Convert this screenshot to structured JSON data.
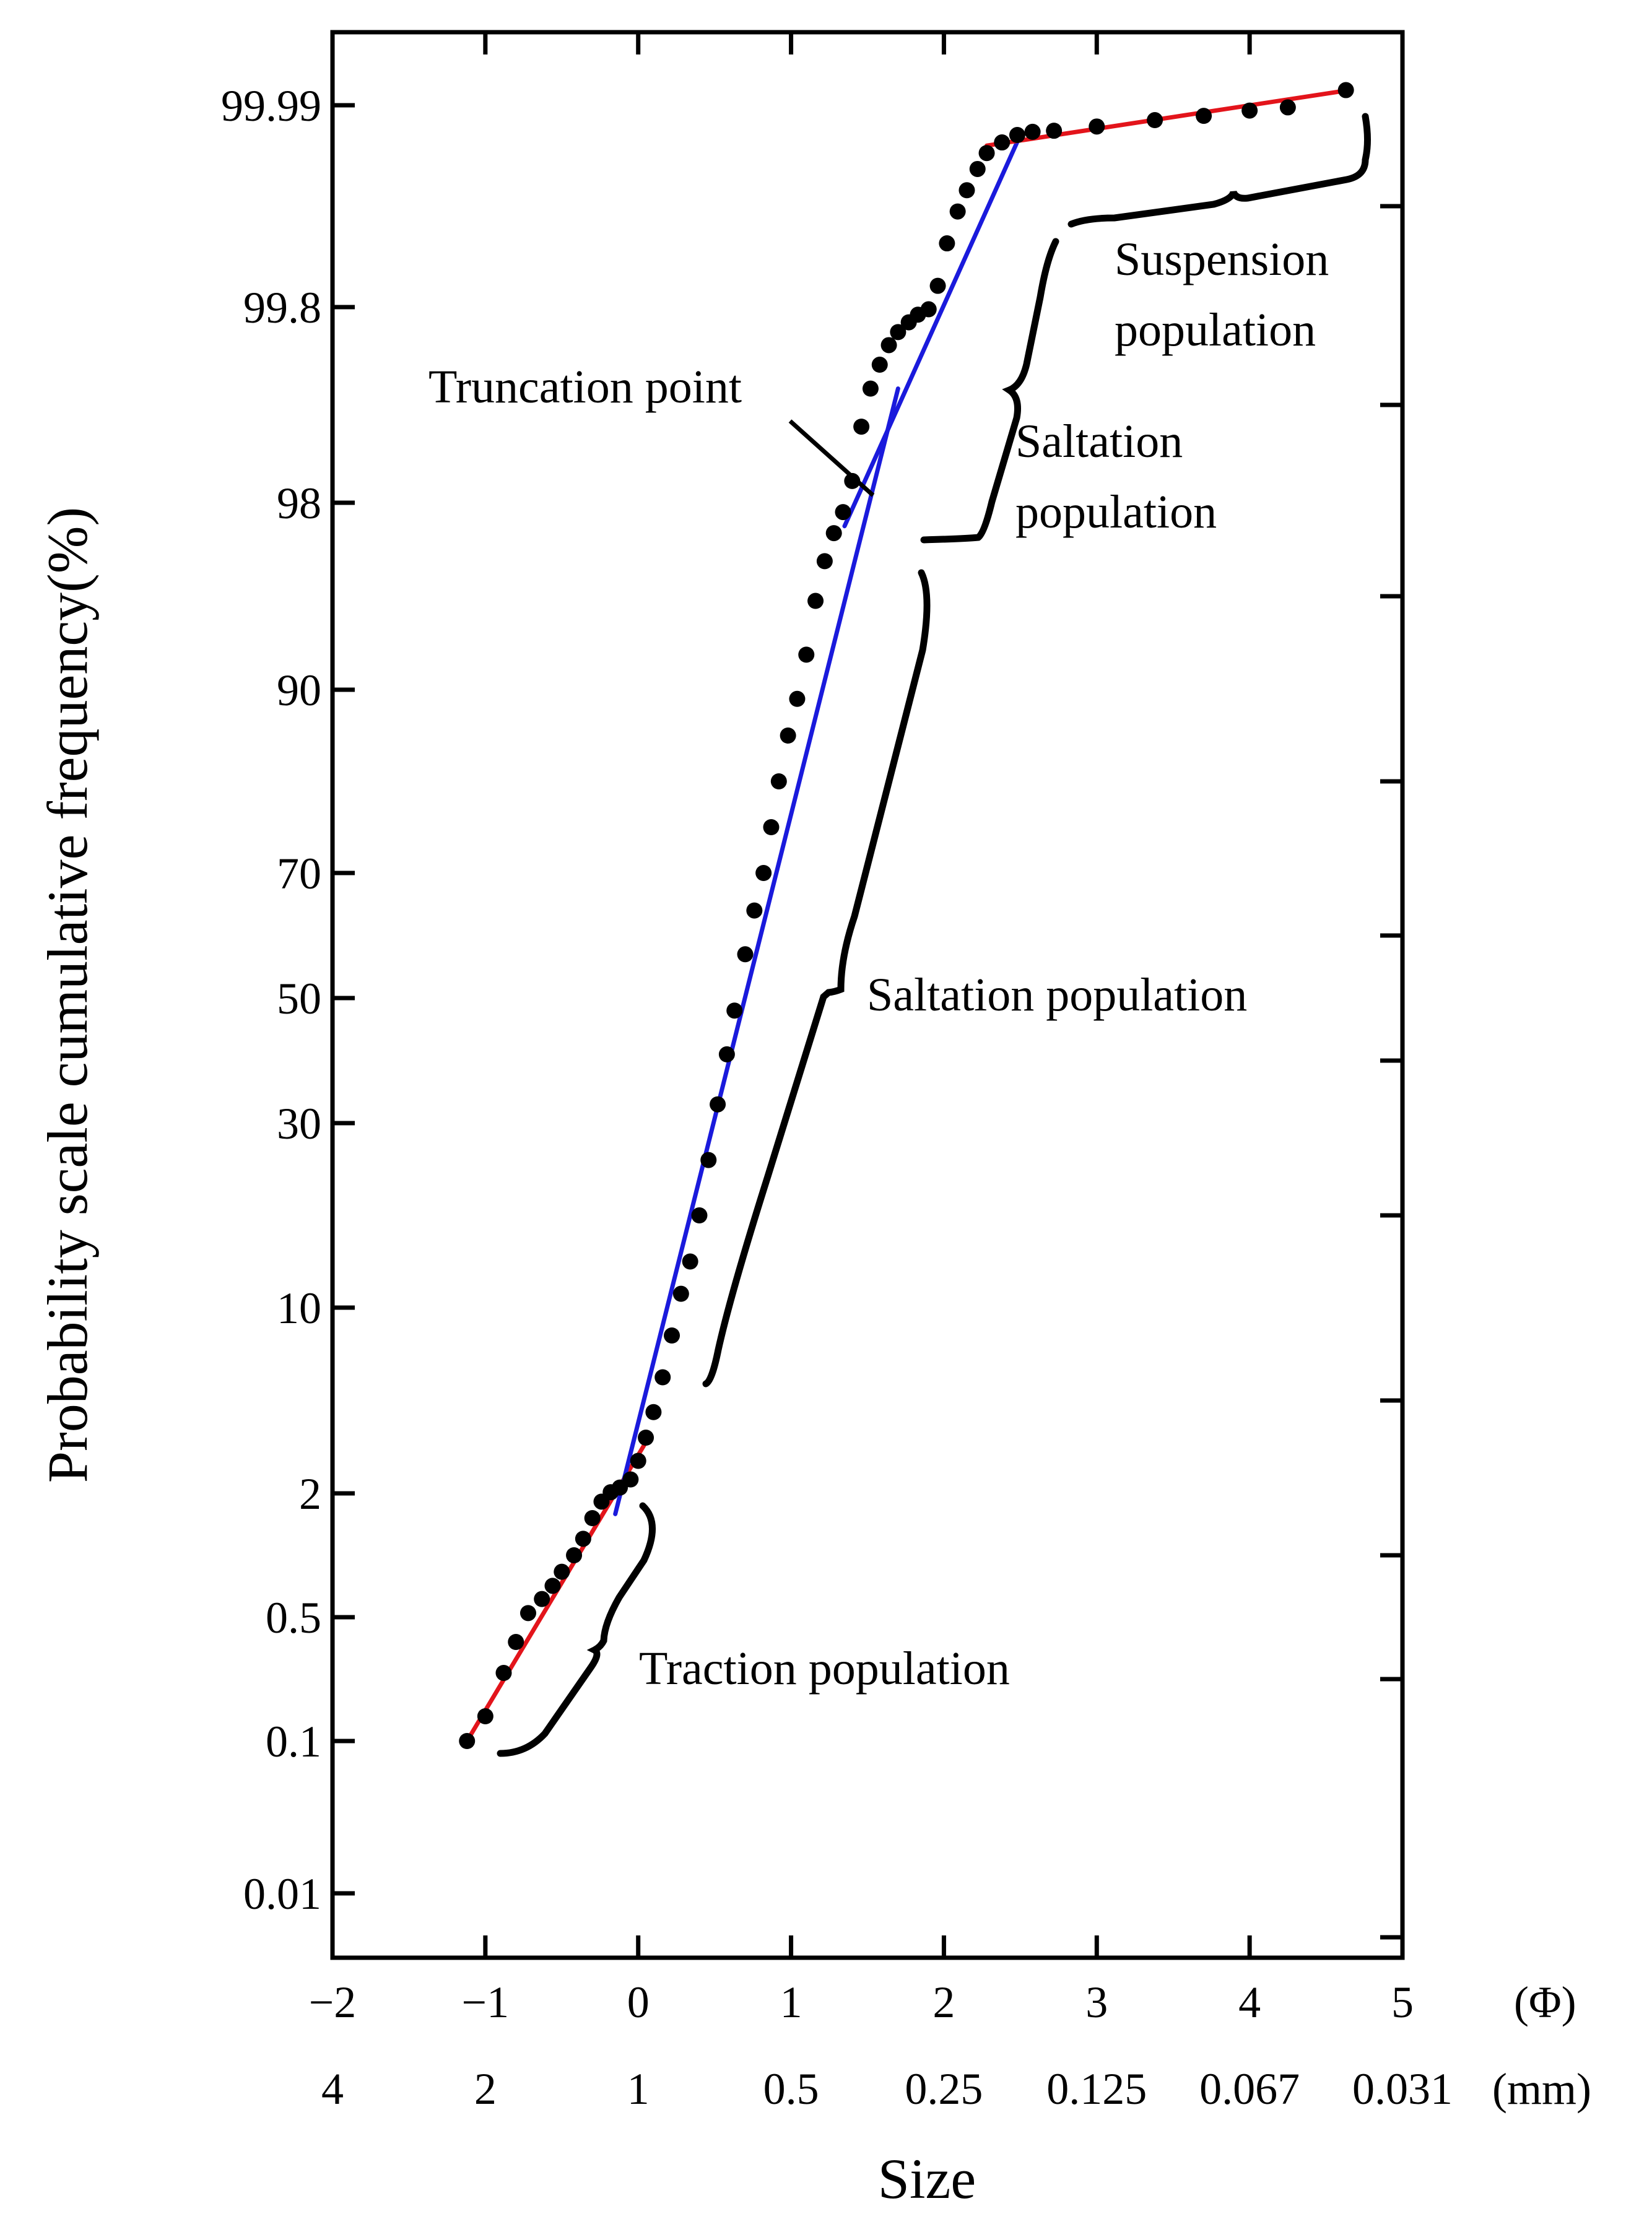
{
  "chart_data": {
    "type": "scatter",
    "title": "",
    "xlabel": "Size",
    "ylabel": "Probability scale cumulative frequency(%)",
    "x_unit_phi": "(Φ)",
    "x_unit_mm": "(mm)",
    "xlim": [
      -2,
      5
    ],
    "x_ticks_phi": [
      {
        "value": -2,
        "label": "−2"
      },
      {
        "value": -1,
        "label": "−1"
      },
      {
        "value": 0,
        "label": "0"
      },
      {
        "value": 1,
        "label": "1"
      },
      {
        "value": 2,
        "label": "2"
      },
      {
        "value": 3,
        "label": "3"
      },
      {
        "value": 4,
        "label": "4"
      },
      {
        "value": 5,
        "label": "5"
      }
    ],
    "x_ticks_mm": [
      {
        "value": -2,
        "label": "4"
      },
      {
        "value": -1,
        "label": "2"
      },
      {
        "value": 0,
        "label": "1"
      },
      {
        "value": 1,
        "label": "0.5"
      },
      {
        "value": 2,
        "label": "0.25"
      },
      {
        "value": 3,
        "label": "0.125"
      },
      {
        "value": 4,
        "label": "0.067"
      },
      {
        "value": 5,
        "label": "0.031"
      }
    ],
    "y_scale": "probability",
    "y_ticks": [
      {
        "value": 0.01,
        "label": "0.01"
      },
      {
        "value": 0.1,
        "label": "0.1"
      },
      {
        "value": 0.5,
        "label": "0.5"
      },
      {
        "value": 2,
        "label": "2"
      },
      {
        "value": 10,
        "label": "10"
      },
      {
        "value": 30,
        "label": "30"
      },
      {
        "value": 50,
        "label": "50"
      },
      {
        "value": 70,
        "label": "70"
      },
      {
        "value": 90,
        "label": "90"
      },
      {
        "value": 98,
        "label": "98"
      },
      {
        "value": 99.8,
        "label": "99.8"
      },
      {
        "value": 99.99,
        "label": "99.99"
      }
    ],
    "points": [
      [
        -1.12,
        0.1
      ],
      [
        -1.0,
        0.18
      ],
      [
        -0.88,
        0.32
      ],
      [
        -0.8,
        0.42
      ],
      [
        -0.72,
        0.55
      ],
      [
        -0.63,
        0.72
      ],
      [
        -0.56,
        0.88
      ],
      [
        -0.5,
        1.05
      ],
      [
        -0.42,
        1.25
      ],
      [
        -0.36,
        1.45
      ],
      [
        -0.3,
        1.7
      ],
      [
        -0.24,
        1.9
      ],
      [
        -0.18,
        2.05
      ],
      [
        -0.12,
        2.25
      ],
      [
        -0.05,
        2.6
      ],
      [
        0.0,
        3.4
      ],
      [
        0.05,
        4.4
      ],
      [
        0.1,
        5.5
      ],
      [
        0.16,
        7.0
      ],
      [
        0.22,
        8.8
      ],
      [
        0.28,
        11.5
      ],
      [
        0.34,
        15
      ],
      [
        0.4,
        20
      ],
      [
        0.46,
        26
      ],
      [
        0.52,
        33
      ],
      [
        0.58,
        41
      ],
      [
        0.63,
        48
      ],
      [
        0.7,
        57
      ],
      [
        0.76,
        64
      ],
      [
        0.82,
        70
      ],
      [
        0.87,
        75
      ],
      [
        0.92,
        80
      ],
      [
        0.98,
        85
      ],
      [
        1.04,
        89
      ],
      [
        1.1,
        91.5
      ],
      [
        1.16,
        93.8
      ],
      [
        1.22,
        95.5
      ],
      [
        1.28,
        96.7
      ],
      [
        1.34,
        97.6
      ],
      [
        1.4,
        98.2
      ],
      [
        1.46,
        98.7
      ],
      [
        1.52,
        99.05
      ],
      [
        1.58,
        99.27
      ],
      [
        1.64,
        99.45
      ],
      [
        1.7,
        99.57
      ],
      [
        1.77,
        99.66
      ],
      [
        1.83,
        99.73
      ],
      [
        1.9,
        99.78
      ],
      [
        1.96,
        99.82
      ],
      [
        2.02,
        99.86
      ],
      [
        2.09,
        99.89
      ],
      [
        2.15,
        99.91
      ],
      [
        2.22,
        99.93
      ],
      [
        2.28,
        99.945
      ],
      [
        2.38,
        99.955
      ],
      [
        2.48,
        99.962
      ],
      [
        2.58,
        99.965
      ],
      [
        2.72,
        99.966
      ],
      [
        3.0,
        99.97
      ],
      [
        3.38,
        99.976
      ],
      [
        3.7,
        99.98
      ],
      [
        4.0,
        99.985
      ],
      [
        4.25,
        99.988
      ],
      [
        4.63,
        99.992
      ]
    ],
    "fit_lines": [
      {
        "name": "traction-fit",
        "color": "#e3141b",
        "from": [
          -1.12,
          0.1
        ],
        "to": [
          0.05,
          4.2
        ]
      },
      {
        "name": "saltation-fit",
        "color": "#1a1adc",
        "from": [
          -0.15,
          1.75
        ],
        "to": [
          1.7,
          99.05
        ]
      },
      {
        "name": "saltation-upper-fit",
        "color": "#1a1adc",
        "from": [
          1.35,
          97.0
        ],
        "to": [
          2.5,
          99.962
        ]
      },
      {
        "name": "suspension-fit",
        "color": "#e3141b",
        "from": [
          2.28,
          99.952
        ],
        "to": [
          4.65,
          99.992
        ]
      }
    ],
    "annotations": {
      "truncation": "Truncation point",
      "suspension_line1": "Suspension",
      "suspension_line2": "population",
      "saltation_upper_line1": "Saltation",
      "saltation_upper_line2": "population",
      "saltation_main": "Saltation population",
      "traction": "Traction population"
    }
  }
}
